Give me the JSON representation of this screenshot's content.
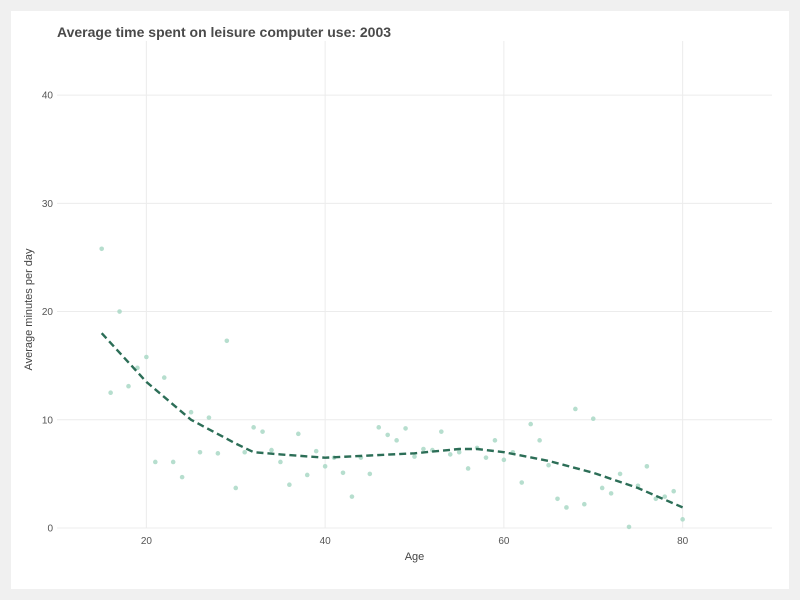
{
  "chart_data": {
    "type": "scatter",
    "title": "Average time spent on leisure computer use: 2003",
    "xlabel": "Age",
    "ylabel": "Average minutes per day",
    "xlim": [
      10,
      90
    ],
    "ylim": [
      0,
      45
    ],
    "x_ticks": [
      20,
      40,
      60,
      80
    ],
    "y_ticks": [
      0,
      10,
      20,
      30,
      40
    ],
    "grid": true,
    "legend": "none",
    "colors": {
      "points": "#a9d8c6",
      "trend": "#2c6e57",
      "grid": "#ececec"
    },
    "series": [
      {
        "type": "scatter",
        "points": [
          [
            15,
            25.8
          ],
          [
            16,
            12.5
          ],
          [
            17,
            20.0
          ],
          [
            18,
            13.1
          ],
          [
            19,
            14.8
          ],
          [
            20,
            15.8
          ],
          [
            21,
            6.1
          ],
          [
            22,
            13.9
          ],
          [
            23,
            6.1
          ],
          [
            24,
            4.7
          ],
          [
            25,
            10.7
          ],
          [
            26,
            7.0
          ],
          [
            27,
            10.2
          ],
          [
            28,
            6.9
          ],
          [
            29,
            17.3
          ],
          [
            30,
            3.7
          ],
          [
            31,
            7.0
          ],
          [
            32,
            9.3
          ],
          [
            33,
            8.9
          ],
          [
            34,
            7.2
          ],
          [
            35,
            6.1
          ],
          [
            36,
            4.0
          ],
          [
            37,
            8.7
          ],
          [
            38,
            4.9
          ],
          [
            39,
            7.1
          ],
          [
            40,
            5.7
          ],
          [
            41,
            6.5
          ],
          [
            42,
            5.1
          ],
          [
            43,
            2.9
          ],
          [
            44,
            6.5
          ],
          [
            45,
            5.0
          ],
          [
            46,
            9.3
          ],
          [
            47,
            8.6
          ],
          [
            48,
            8.1
          ],
          [
            49,
            9.2
          ],
          [
            50,
            6.6
          ],
          [
            51,
            7.3
          ],
          [
            52,
            7.2
          ],
          [
            53,
            8.9
          ],
          [
            54,
            6.8
          ],
          [
            55,
            7.0
          ],
          [
            56,
            5.5
          ],
          [
            57,
            7.4
          ],
          [
            58,
            6.5
          ],
          [
            59,
            8.1
          ],
          [
            60,
            6.3
          ],
          [
            61,
            7.0
          ],
          [
            62,
            4.2
          ],
          [
            63,
            9.6
          ],
          [
            64,
            8.1
          ],
          [
            65,
            5.8
          ],
          [
            66,
            2.7
          ],
          [
            67,
            1.9
          ],
          [
            68,
            11.0
          ],
          [
            69,
            2.2
          ],
          [
            70,
            10.1
          ],
          [
            71,
            3.7
          ],
          [
            72,
            3.2
          ],
          [
            73,
            5.0
          ],
          [
            74,
            0.1
          ],
          [
            75,
            3.9
          ],
          [
            76,
            5.7
          ],
          [
            77,
            2.7
          ],
          [
            78,
            2.9
          ],
          [
            79,
            3.4
          ],
          [
            80,
            0.8
          ]
        ]
      },
      {
        "type": "line",
        "style": "dashed",
        "points": [
          [
            15,
            18.0
          ],
          [
            20,
            13.5
          ],
          [
            25,
            10.0
          ],
          [
            30,
            7.8
          ],
          [
            32,
            7.0
          ],
          [
            35,
            6.8
          ],
          [
            40,
            6.5
          ],
          [
            45,
            6.7
          ],
          [
            50,
            6.9
          ],
          [
            55,
            7.3
          ],
          [
            57,
            7.3
          ],
          [
            60,
            7.0
          ],
          [
            65,
            6.2
          ],
          [
            70,
            5.1
          ],
          [
            75,
            3.7
          ],
          [
            80,
            1.9
          ]
        ]
      }
    ]
  }
}
